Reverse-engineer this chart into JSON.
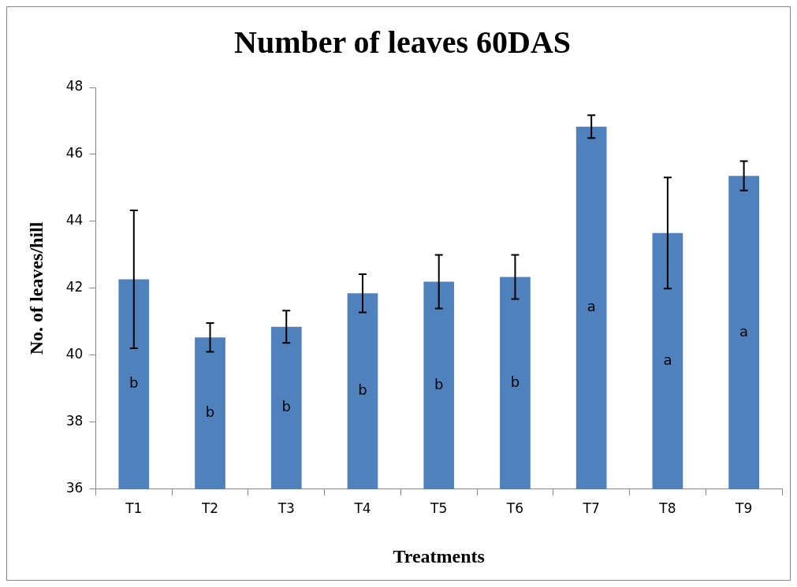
{
  "chart_data": {
    "type": "bar",
    "title": "Number of leaves 60DAS",
    "xlabel": "Treatments",
    "ylabel": "No. of leaves/hill",
    "categories": [
      "T1",
      "T2",
      "T3",
      "T4",
      "T5",
      "T6",
      "T7",
      "T8",
      "T9"
    ],
    "values": [
      42.27,
      40.53,
      40.85,
      41.85,
      42.2,
      42.34,
      46.83,
      43.65,
      45.36
    ],
    "errors": [
      2.06,
      0.43,
      0.48,
      0.57,
      0.8,
      0.66,
      0.34,
      1.66,
      0.44
    ],
    "color": "#4f81bd",
    "ylim": [
      36,
      48
    ],
    "yticks": [
      36,
      38,
      40,
      42,
      44,
      46,
      48
    ],
    "grid": false,
    "legend": false,
    "value_labels": [
      "b",
      "b",
      "b",
      "b",
      "b",
      "b",
      "a",
      "a",
      "a"
    ]
  }
}
